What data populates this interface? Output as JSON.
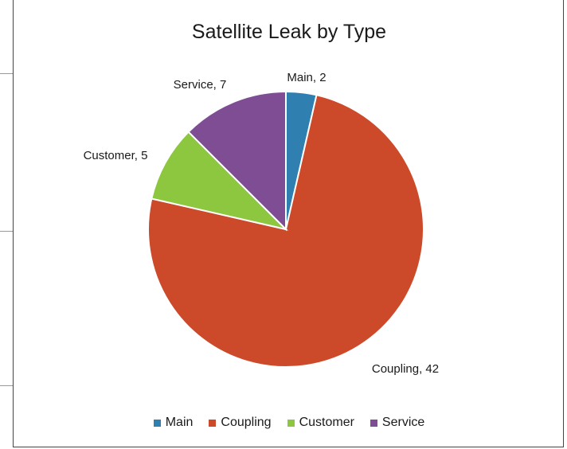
{
  "chart_data": {
    "type": "pie",
    "title": "Satellite Leak by Type",
    "categories": [
      "Main",
      "Coupling",
      "Customer",
      "Service"
    ],
    "values": [
      2,
      42,
      5,
      7
    ],
    "data_labels": [
      "Main, 2",
      "Coupling, 42",
      "Customer, 5",
      "Service, 7"
    ],
    "colors": [
      "#2f7fb0",
      "#cc4a2a",
      "#8dc63f",
      "#7e4d93"
    ],
    "legend": {
      "position": "bottom",
      "entries": [
        "Main",
        "Coupling",
        "Customer",
        "Service"
      ]
    }
  }
}
